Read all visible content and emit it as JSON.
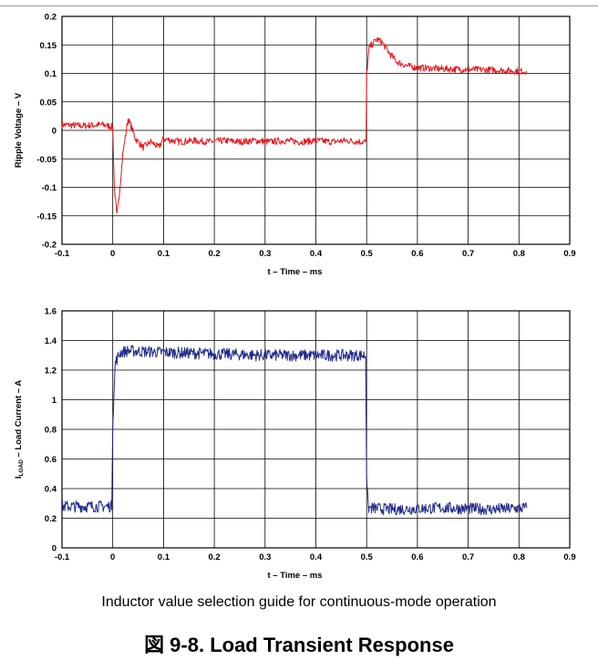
{
  "caption": "Inductor value selection guide for continuous-mode operation",
  "figure_title": "図 9-8. Load Transient Response",
  "chart_data": [
    {
      "type": "line",
      "xlabel": "t – Time – ms",
      "ylabel": "Ripple Voltage – V",
      "xlim": [
        -0.1,
        0.9
      ],
      "ylim": [
        -0.2,
        0.2
      ],
      "xticks": [
        -0.1,
        0,
        0.1,
        0.2,
        0.3,
        0.4,
        0.5,
        0.6,
        0.7,
        0.8,
        0.9
      ],
      "xtick_labels": [
        "-0.1",
        "0",
        "0.1",
        "0.2",
        "0.3",
        "0.4",
        "0.5",
        "0.6",
        "0.7",
        "0.8",
        "0.9"
      ],
      "yticks": [
        -0.2,
        -0.15,
        -0.1,
        -0.05,
        0,
        0.05,
        0.1,
        0.15,
        0.2
      ],
      "ytick_labels": [
        "-0.2",
        "-0.15",
        "-0.1",
        "-0.05",
        "0",
        "0.05",
        "0.1",
        "0.15",
        "0.2"
      ],
      "grid": true,
      "color": "#e8141c",
      "series": [
        {
          "x": [
            -0.1,
            -0.06,
            -0.02,
            0,
            0.003,
            0.008,
            0.012,
            0.02,
            0.03,
            0.035,
            0.045,
            0.06,
            0.075,
            0.09,
            0.1,
            0.13,
            0.16,
            0.19,
            0.22,
            0.25,
            0.28,
            0.31,
            0.34,
            0.37,
            0.4,
            0.43,
            0.46,
            0.49,
            0.499,
            0.5,
            0.505,
            0.52,
            0.53,
            0.545,
            0.56,
            0.58,
            0.6,
            0.65,
            0.7,
            0.75,
            0.8,
            0.815
          ],
          "y": [
            0.01,
            0.008,
            0.01,
            0.006,
            -0.1,
            -0.15,
            -0.12,
            -0.04,
            0.02,
            0.01,
            -0.015,
            -0.03,
            -0.02,
            -0.03,
            -0.015,
            -0.02,
            -0.018,
            -0.02,
            -0.018,
            -0.02,
            -0.018,
            -0.02,
            -0.018,
            -0.02,
            -0.018,
            -0.02,
            -0.018,
            -0.02,
            -0.02,
            0.1,
            0.145,
            0.16,
            0.155,
            0.135,
            0.12,
            0.113,
            0.11,
            0.108,
            0.107,
            0.106,
            0.104,
            0.104
          ]
        }
      ]
    },
    {
      "type": "line",
      "xlabel": "t – Time – ms",
      "ylabel": "ILOAD – Load Current – A",
      "ylabel_sub": "LOAD",
      "xlim": [
        -0.1,
        0.9
      ],
      "ylim": [
        0,
        1.6
      ],
      "xticks": [
        -0.1,
        0,
        0.1,
        0.2,
        0.3,
        0.4,
        0.5,
        0.6,
        0.7,
        0.8,
        0.9
      ],
      "xtick_labels": [
        "-0.1",
        "0",
        "0.1",
        "0.2",
        "0.3",
        "0.4",
        "0.5",
        "0.6",
        "0.7",
        "0.8",
        "0.9"
      ],
      "yticks": [
        0,
        0.2,
        0.4,
        0.6,
        0.8,
        1,
        1.2,
        1.4,
        1.6
      ],
      "ytick_labels": [
        "0",
        "0.2",
        "0.4",
        "0.6",
        "0.8",
        "1",
        "1.2",
        "1.4",
        "1.6"
      ],
      "grid": true,
      "color": "#1f2a8a",
      "series": [
        {
          "x": [
            -0.1,
            -0.05,
            -0.002,
            0.0,
            0.005,
            0.015,
            0.03,
            0.1,
            0.2,
            0.3,
            0.4,
            0.498,
            0.5,
            0.503,
            0.55,
            0.65,
            0.75,
            0.815
          ],
          "y": [
            0.28,
            0.28,
            0.28,
            0.85,
            1.25,
            1.32,
            1.33,
            1.32,
            1.31,
            1.3,
            1.3,
            1.3,
            0.5,
            0.27,
            0.26,
            0.27,
            0.26,
            0.27
          ]
        }
      ]
    }
  ]
}
